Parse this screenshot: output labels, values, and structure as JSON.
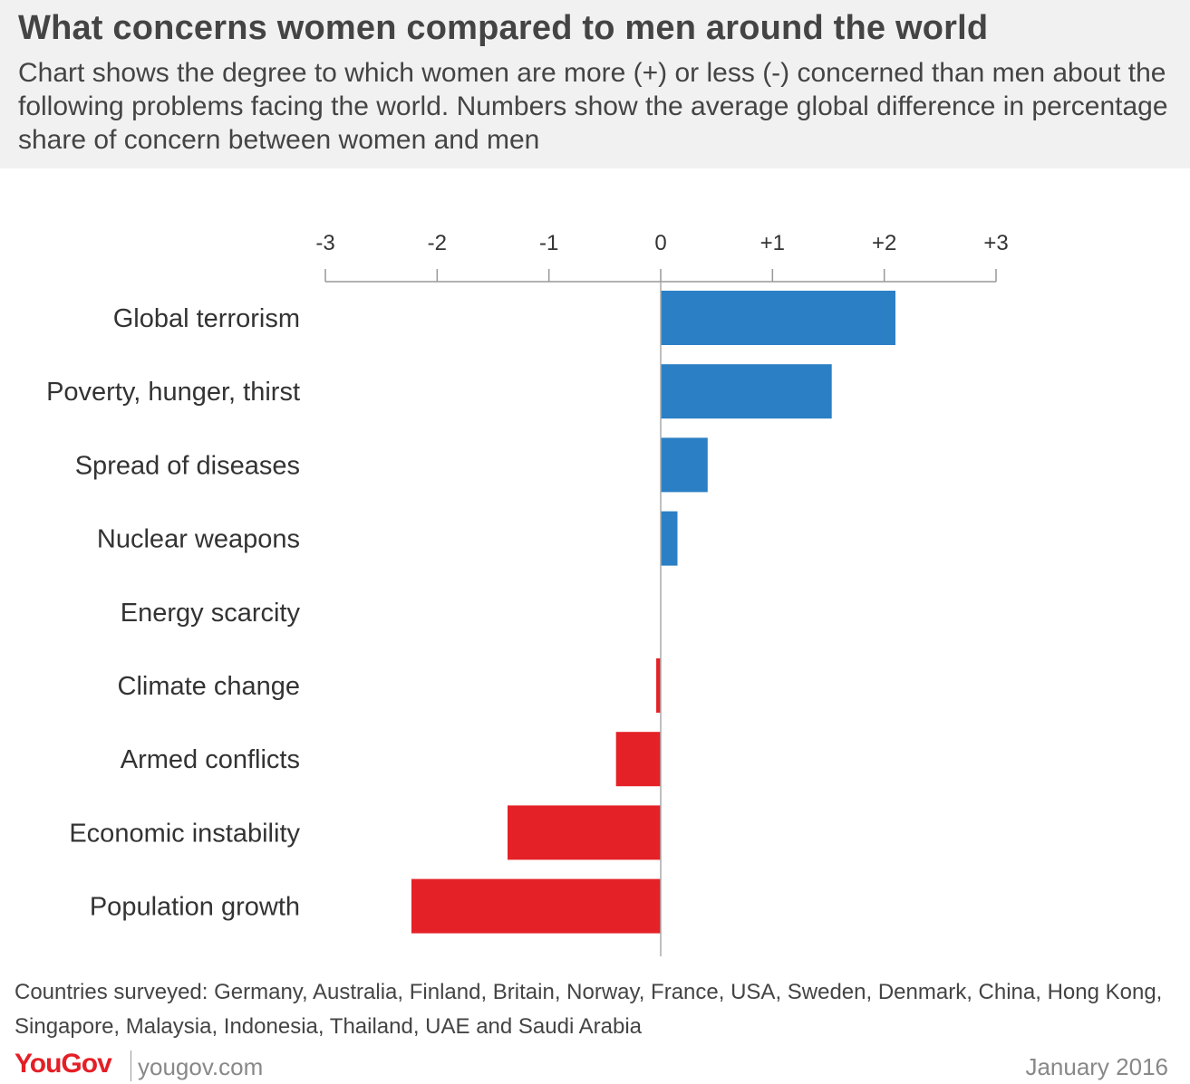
{
  "header": {
    "title": "What concerns women compared to men around the world",
    "subtitle": "Chart shows the degree to which women are more (+) or less (-) concerned than men about the following problems facing the world. Numbers show the average global difference in percentage share of concern between women and men"
  },
  "footer": {
    "countries": "Countries surveyed: Germany, Australia, Finland, Britain, Norway, France, USA, Sweden, Denmark, China, Hong Kong, Singapore, Malaysia, Indonesia, Thailand, UAE and Saudi Arabia",
    "brand": "YouGov",
    "site": "yougov.com",
    "date": "January 2016"
  },
  "colors": {
    "positive": "#2b7fc4",
    "negative": "#e42127",
    "header_bg": "#f1f1f2",
    "brand": "#e41f26"
  },
  "chart_data": {
    "type": "bar",
    "orientation": "horizontal",
    "categories": [
      "Global terrorism",
      "Poverty, hunger, thirst",
      "Spread of diseases",
      "Nuclear weapons",
      "Energy scarcity",
      "Climate change",
      "Armed conflicts",
      "Economic instability",
      "Population growth"
    ],
    "values": [
      2.1,
      1.53,
      0.42,
      0.15,
      0.0,
      -0.04,
      -0.4,
      -1.37,
      -2.23
    ],
    "xlim": [
      -3,
      3
    ],
    "ticks": [
      -3,
      -2,
      -1,
      0,
      1,
      2,
      3
    ],
    "tick_labels": [
      "-3",
      "-2",
      "-1",
      "0",
      "+1",
      "+2",
      "+3"
    ],
    "axis_position": "top",
    "grid": false,
    "legend": "none"
  }
}
